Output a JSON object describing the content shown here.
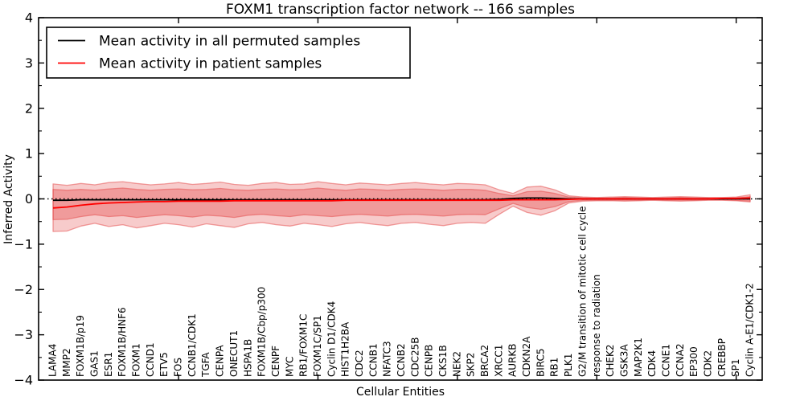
{
  "title": "FOXM1 transcription factor network -- 166 samples",
  "legend": {
    "items": [
      {
        "label": "Mean activity in all permuted samples",
        "color": "#000000"
      },
      {
        "label": "Mean activity in patient samples",
        "color": "#ff0000"
      }
    ]
  },
  "axes": {
    "xlabel": "Cellular Entities",
    "ylabel": "Inferred Activity",
    "ylim": [
      -4,
      4
    ],
    "yticks": [
      -4,
      -3,
      -2,
      -1,
      0,
      1,
      2,
      3,
      4
    ],
    "ytick_labels": [
      "−4",
      "−3",
      "−2",
      "−1",
      "0",
      "1",
      "2",
      "3",
      "4"
    ],
    "y_minor_step": 0.5,
    "x_major_tick_indices": [
      9,
      19,
      29,
      39,
      49
    ]
  },
  "colors": {
    "patient_line": "#ff0000",
    "permuted_line": "#000000",
    "zero_line": "#000000",
    "band_fill": "#dc1414",
    "band_edge": "#e65050",
    "spine": "#000000"
  },
  "chart_data": {
    "type": "line",
    "title": "FOXM1 transcription factor network -- 166 samples",
    "xlabel": "Cellular Entities",
    "ylabel": "Inferred Activity",
    "ylim": [
      -4,
      4
    ],
    "grid": false,
    "legend_position": "upper left",
    "zero_reference_line": 0,
    "categories": [
      "LAMA4",
      "MMP2",
      "FOXM1B/p19",
      "GAS1",
      "ESR1",
      "FOXM1B/HNF6",
      "FOXM1",
      "CCND1",
      "ETV5",
      "FOS",
      "CCNB1/CDK1",
      "TGFA",
      "CENPA",
      "ONECUT1",
      "HSPA1B",
      "FOXM1B/Cbp/p300",
      "CENPF",
      "MYC",
      "RB1/FOXM1C",
      "FOXM1C/SP1",
      "Cyclin D1/CDK4",
      "HIST1H2BA",
      "CDC2",
      "CCNB1",
      "NFATC3",
      "CCNB2",
      "CDC25B",
      "CENPB",
      "CKS1B",
      "NEK2",
      "SKP2",
      "BRCA2",
      "XRCC1",
      "AURKB",
      "CDKN2A",
      "BIRC5",
      "RB1",
      "PLK1",
      "G2/M transition of mitotic cell cycle",
      "response to radiation",
      "CHEK2",
      "GSK3A",
      "MAP2K1",
      "CDK4",
      "CCNE1",
      "CCNA2",
      "EP300",
      "CDK2",
      "CREBBP",
      "SP1",
      "Cyclin A-E1/CDK1-2"
    ],
    "series": [
      {
        "name": "Mean activity in all permuted samples",
        "color": "#000000",
        "values": [
          -0.03,
          -0.03,
          -0.02,
          -0.02,
          -0.02,
          -0.02,
          -0.02,
          -0.02,
          -0.02,
          -0.02,
          -0.02,
          -0.02,
          -0.02,
          -0.02,
          -0.02,
          -0.02,
          -0.02,
          -0.02,
          -0.02,
          -0.02,
          -0.02,
          -0.02,
          -0.02,
          -0.02,
          -0.02,
          -0.02,
          -0.02,
          -0.02,
          -0.02,
          -0.02,
          -0.02,
          -0.02,
          -0.01,
          0.01,
          0.02,
          0.02,
          0.01,
          0.0,
          0.0,
          0.0,
          0.0,
          0.0,
          0.0,
          0.0,
          0.0,
          0.0,
          0.0,
          0.0,
          0.0,
          0.0,
          0.0
        ]
      },
      {
        "name": "Mean activity in patient samples",
        "color": "#ff0000",
        "values": [
          -0.2,
          -0.18,
          -0.14,
          -0.11,
          -0.09,
          -0.08,
          -0.07,
          -0.06,
          -0.06,
          -0.05,
          -0.05,
          -0.05,
          -0.05,
          -0.04,
          -0.04,
          -0.04,
          -0.04,
          -0.04,
          -0.04,
          -0.04,
          -0.04,
          -0.03,
          -0.03,
          -0.03,
          -0.03,
          -0.03,
          -0.03,
          -0.03,
          -0.03,
          -0.03,
          -0.03,
          -0.03,
          -0.03,
          -0.02,
          -0.02,
          -0.02,
          -0.02,
          -0.01,
          0.0,
          0.0,
          0.0,
          0.0,
          0.0,
          0.0,
          0.0,
          0.0,
          0.0,
          0.0,
          0.01,
          0.01,
          0.02
        ]
      }
    ],
    "bands": [
      {
        "name": "outer-envelope",
        "upper": [
          0.33,
          0.3,
          0.34,
          0.31,
          0.36,
          0.38,
          0.34,
          0.31,
          0.33,
          0.36,
          0.32,
          0.34,
          0.37,
          0.32,
          0.3,
          0.34,
          0.36,
          0.32,
          0.33,
          0.38,
          0.34,
          0.31,
          0.35,
          0.33,
          0.31,
          0.34,
          0.36,
          0.33,
          0.31,
          0.34,
          0.33,
          0.31,
          0.2,
          0.12,
          0.26,
          0.28,
          0.2,
          0.07,
          0.04,
          0.03,
          0.04,
          0.05,
          0.04,
          0.03,
          0.04,
          0.05,
          0.04,
          0.03,
          0.03,
          0.04,
          0.09
        ],
        "lower": [
          -0.72,
          -0.71,
          -0.6,
          -0.54,
          -0.61,
          -0.57,
          -0.64,
          -0.59,
          -0.54,
          -0.57,
          -0.62,
          -0.55,
          -0.59,
          -0.63,
          -0.55,
          -0.52,
          -0.57,
          -0.6,
          -0.54,
          -0.57,
          -0.61,
          -0.55,
          -0.52,
          -0.56,
          -0.59,
          -0.54,
          -0.52,
          -0.56,
          -0.59,
          -0.54,
          -0.52,
          -0.54,
          -0.34,
          -0.16,
          -0.3,
          -0.36,
          -0.26,
          -0.09,
          -0.05,
          -0.04,
          -0.04,
          -0.05,
          -0.04,
          -0.03,
          -0.04,
          -0.05,
          -0.04,
          -0.03,
          -0.03,
          -0.04,
          -0.07
        ]
      },
      {
        "name": "inner-envelope",
        "upper": [
          0.21,
          0.19,
          0.21,
          0.19,
          0.22,
          0.24,
          0.21,
          0.19,
          0.21,
          0.22,
          0.2,
          0.21,
          0.23,
          0.2,
          0.19,
          0.21,
          0.22,
          0.2,
          0.21,
          0.24,
          0.21,
          0.19,
          0.22,
          0.21,
          0.19,
          0.21,
          0.22,
          0.21,
          0.19,
          0.21,
          0.21,
          0.19,
          0.12,
          0.07,
          0.16,
          0.17,
          0.12,
          0.04,
          0.02,
          0.02,
          0.02,
          0.03,
          0.02,
          0.02,
          0.02,
          0.03,
          0.02,
          0.02,
          0.02,
          0.02,
          0.05
        ],
        "lower": [
          -0.46,
          -0.45,
          -0.39,
          -0.35,
          -0.39,
          -0.37,
          -0.41,
          -0.38,
          -0.35,
          -0.37,
          -0.4,
          -0.36,
          -0.38,
          -0.41,
          -0.36,
          -0.34,
          -0.37,
          -0.39,
          -0.35,
          -0.37,
          -0.39,
          -0.36,
          -0.34,
          -0.36,
          -0.38,
          -0.35,
          -0.34,
          -0.36,
          -0.38,
          -0.35,
          -0.34,
          -0.35,
          -0.22,
          -0.1,
          -0.19,
          -0.23,
          -0.17,
          -0.06,
          -0.03,
          -0.03,
          -0.03,
          -0.03,
          -0.03,
          -0.02,
          -0.03,
          -0.03,
          -0.03,
          -0.02,
          -0.02,
          -0.03,
          -0.05
        ]
      }
    ]
  }
}
